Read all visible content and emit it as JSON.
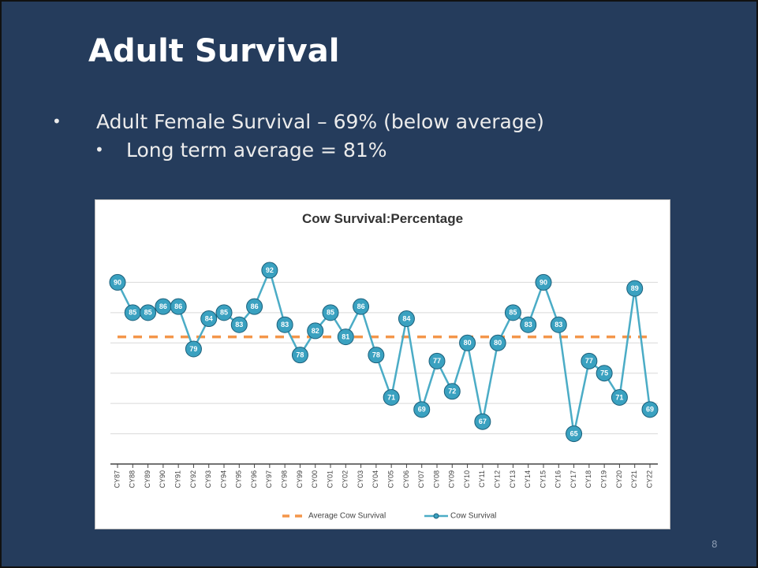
{
  "slide": {
    "title": "Adult Survival",
    "bullets": [
      "Adult Female Survival – 69% (below average)",
      "Long term average = 81%"
    ],
    "page_number": "8"
  },
  "chart_data": {
    "type": "line",
    "title": "Cow Survival:Percentage",
    "categories": [
      "CY87",
      "CY88",
      "CY89",
      "CY90",
      "CY91",
      "CY92",
      "CY93",
      "CY94",
      "CY95",
      "CY96",
      "CY97",
      "CY98",
      "CY99",
      "CY00",
      "CY01",
      "CY02",
      "CY03",
      "CY04",
      "CY05",
      "CY06",
      "CY07",
      "CY08",
      "CY09",
      "CY10",
      "CY11",
      "CY12",
      "CY13",
      "CY14",
      "CY15",
      "CY16",
      "CY17",
      "CY18",
      "CY19",
      "CY20",
      "CY21",
      "CY22"
    ],
    "series": [
      {
        "name": "Average Cow Survival",
        "color": "#f4964a",
        "dashed": true,
        "markers": false,
        "values": [
          81,
          81,
          81,
          81,
          81,
          81,
          81,
          81,
          81,
          81,
          81,
          81,
          81,
          81,
          81,
          81,
          81,
          81,
          81,
          81,
          81,
          81,
          81,
          81,
          81,
          81,
          81,
          81,
          81,
          81,
          81,
          81,
          81,
          81,
          81,
          81
        ]
      },
      {
        "name": "Cow Survival",
        "color": "#4bacc6",
        "dashed": false,
        "markers": true,
        "values": [
          90,
          85,
          85,
          86,
          86,
          79,
          84,
          85,
          83,
          86,
          92,
          83,
          78,
          82,
          85,
          81,
          86,
          78,
          71,
          84,
          69,
          77,
          72,
          80,
          67,
          80,
          85,
          83,
          90,
          83,
          65,
          77,
          75,
          71,
          89,
          69
        ]
      }
    ],
    "ylim": [
      60,
      95
    ],
    "yticks": [
      60,
      65,
      70,
      75,
      80,
      85,
      90
    ],
    "grid": true,
    "legend": "bottom"
  }
}
